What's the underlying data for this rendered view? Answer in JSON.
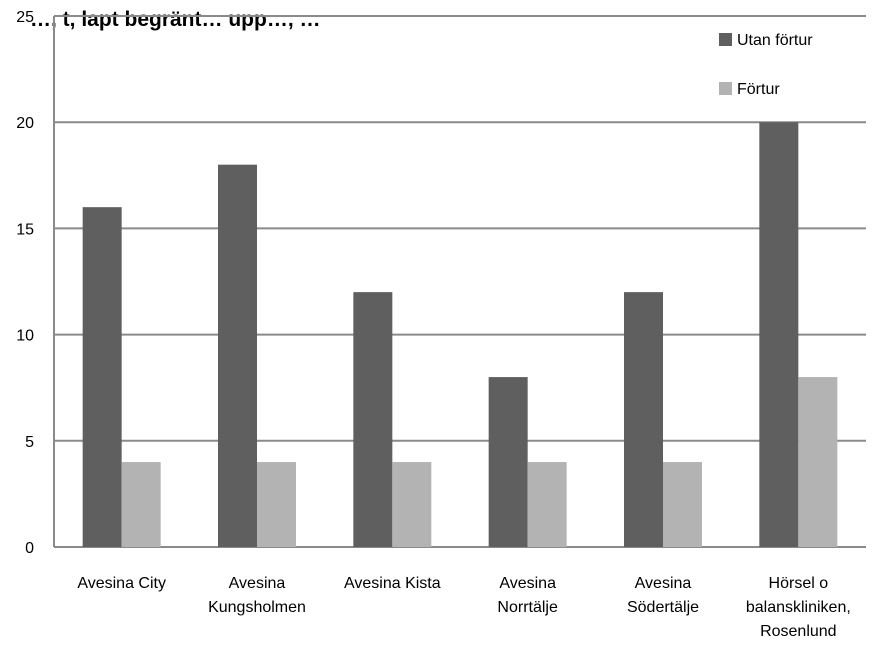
{
  "chart_data": {
    "type": "bar",
    "title": "…, t, lapt begränt… upp…, …",
    "categories": [
      [
        "Avesina City"
      ],
      [
        "Avesina",
        "Kungsholmen"
      ],
      [
        "Avesina Kista"
      ],
      [
        "Avesina",
        "Norrtälje"
      ],
      [
        "Avesina",
        "Södertälje"
      ],
      [
        "Hörsel o",
        "balanskliniken,",
        "Rosenlund"
      ]
    ],
    "series": [
      {
        "name": "Utan förtur",
        "values": [
          16,
          18,
          12,
          8,
          12,
          20
        ],
        "color": "#5f5f5f"
      },
      {
        "name": "Förtur",
        "values": [
          4,
          4,
          4,
          4,
          4,
          8
        ],
        "color": "#b3b3b3"
      }
    ],
    "ylim": [
      0,
      25
    ],
    "yticks": [
      0,
      5,
      10,
      15,
      20,
      25
    ],
    "grid": true,
    "legend_position": "top-right"
  }
}
